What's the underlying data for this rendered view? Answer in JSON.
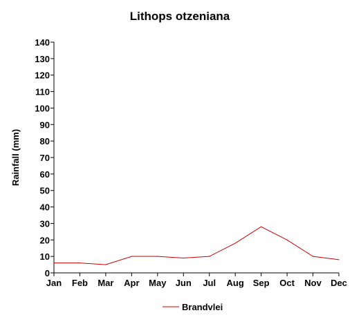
{
  "chart_data": {
    "type": "line",
    "title": "Lithops otzeniana",
    "xlabel": "",
    "ylabel": "Rainfall (mm)",
    "ylim": [
      0,
      140
    ],
    "yticks": [
      "0",
      "10",
      "20",
      "30",
      "40",
      "50",
      "60",
      "70",
      "80",
      "90",
      "100",
      "110",
      "120",
      "130",
      "140"
    ],
    "categories": [
      "Jan",
      "Feb",
      "Mar",
      "Apr",
      "May",
      "Jun",
      "Jul",
      "Aug",
      "Sep",
      "Oct",
      "Nov",
      "Dec"
    ],
    "series": [
      {
        "name": "Brandvlei",
        "values": [
          6,
          6,
          5,
          10,
          10,
          9,
          10,
          18,
          28,
          20,
          10,
          8
        ],
        "color": "#cc0000"
      }
    ],
    "grid": false,
    "legend_position": "bottom-center"
  }
}
